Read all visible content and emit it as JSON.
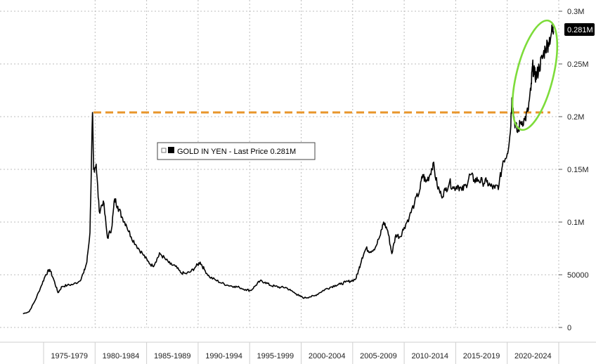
{
  "chart_data": {
    "type": "line",
    "x_tick_labels": [
      "1975-1979",
      "1980-1984",
      "1985-1989",
      "1990-1994",
      "1995-1999",
      "2000-2004",
      "2005-2009",
      "2010-2014",
      "2015-2019",
      "2020-2024"
    ],
    "y_tick_labels": [
      "0",
      "50000",
      "0.1M",
      "0.15M",
      "0.2M",
      "0.25M",
      "0.3M"
    ],
    "ylim": [
      0,
      300000
    ],
    "legend": {
      "label": "GOLD IN YEN - Last Price 0.281M",
      "placement": "middle-left"
    },
    "last_value_label": "0.281M",
    "reference_line": {
      "value": 204000,
      "color": "#e8962b",
      "style": "dashed"
    },
    "highlight_ellipse_color": "#7ddc3a",
    "series": [
      {
        "name": "GOLD IN YEN",
        "color": "#000000",
        "points": [
          [
            1973.0,
            13000
          ],
          [
            1973.6,
            15000
          ],
          [
            1974.2,
            26000
          ],
          [
            1974.8,
            40000
          ],
          [
            1975.2,
            50000
          ],
          [
            1975.6,
            55000
          ],
          [
            1976.0,
            45000
          ],
          [
            1976.4,
            33000
          ],
          [
            1976.8,
            39000
          ],
          [
            1977.3,
            40000
          ],
          [
            1977.9,
            41000
          ],
          [
            1978.5,
            44000
          ],
          [
            1978.9,
            52000
          ],
          [
            1979.2,
            62000
          ],
          [
            1979.5,
            90000
          ],
          [
            1979.75,
            204000
          ],
          [
            1979.85,
            150000
          ],
          [
            1980.1,
            155000
          ],
          [
            1980.4,
            110000
          ],
          [
            1980.8,
            120000
          ],
          [
            1981.2,
            85000
          ],
          [
            1981.6,
            94000
          ],
          [
            1981.9,
            122000
          ],
          [
            1982.2,
            115000
          ],
          [
            1982.6,
            105000
          ],
          [
            1983.0,
            98000
          ],
          [
            1983.5,
            86000
          ],
          [
            1984.0,
            78000
          ],
          [
            1984.6,
            70000
          ],
          [
            1985.1,
            63000
          ],
          [
            1985.6,
            58000
          ],
          [
            1986.0,
            65000
          ],
          [
            1986.3,
            70000
          ],
          [
            1986.8,
            65000
          ],
          [
            1987.3,
            60000
          ],
          [
            1987.8,
            58000
          ],
          [
            1988.3,
            52000
          ],
          [
            1988.8,
            51000
          ],
          [
            1989.3,
            53000
          ],
          [
            1989.8,
            58000
          ],
          [
            1990.2,
            62000
          ],
          [
            1990.6,
            55000
          ],
          [
            1991.1,
            48000
          ],
          [
            1991.7,
            45000
          ],
          [
            1992.3,
            42000
          ],
          [
            1992.9,
            40000
          ],
          [
            1993.5,
            39000
          ],
          [
            1994.0,
            38000
          ],
          [
            1994.6,
            36000
          ],
          [
            1995.1,
            35000
          ],
          [
            1995.6,
            40000
          ],
          [
            1996.0,
            44000
          ],
          [
            1996.5,
            43000
          ],
          [
            1997.0,
            40000
          ],
          [
            1997.5,
            39000
          ],
          [
            1998.0,
            38000
          ],
          [
            1998.5,
            38000
          ],
          [
            1999.0,
            35000
          ],
          [
            1999.5,
            32000
          ],
          [
            1999.8,
            30000
          ],
          [
            2000.3,
            28000
          ],
          [
            2000.8,
            29000
          ],
          [
            2001.3,
            30000
          ],
          [
            2001.8,
            33000
          ],
          [
            2002.3,
            36000
          ],
          [
            2002.8,
            38000
          ],
          [
            2003.3,
            40000
          ],
          [
            2003.8,
            41000
          ],
          [
            2004.3,
            43000
          ],
          [
            2004.8,
            44000
          ],
          [
            2005.3,
            46000
          ],
          [
            2005.6,
            55000
          ],
          [
            2005.9,
            66000
          ],
          [
            2006.3,
            75000
          ],
          [
            2006.7,
            72000
          ],
          [
            2007.2,
            76000
          ],
          [
            2007.7,
            88000
          ],
          [
            2008.0,
            100000
          ],
          [
            2008.4,
            92000
          ],
          [
            2008.8,
            70000
          ],
          [
            2009.2,
            88000
          ],
          [
            2009.6,
            86000
          ],
          [
            2010.0,
            95000
          ],
          [
            2010.5,
            105000
          ],
          [
            2011.0,
            118000
          ],
          [
            2011.5,
            130000
          ],
          [
            2011.8,
            145000
          ],
          [
            2012.1,
            138000
          ],
          [
            2012.5,
            145000
          ],
          [
            2012.8,
            156000
          ],
          [
            2013.2,
            135000
          ],
          [
            2013.6,
            125000
          ],
          [
            2014.0,
            130000
          ],
          [
            2014.4,
            138000
          ],
          [
            2014.8,
            132000
          ],
          [
            2015.2,
            135000
          ],
          [
            2015.6,
            130000
          ],
          [
            2016.0,
            135000
          ],
          [
            2016.4,
            145000
          ],
          [
            2016.8,
            140000
          ],
          [
            2017.2,
            140000
          ],
          [
            2017.6,
            138000
          ],
          [
            2018.0,
            138000
          ],
          [
            2018.4,
            134000
          ],
          [
            2018.8,
            132000
          ],
          [
            2019.2,
            135000
          ],
          [
            2019.6,
            158000
          ],
          [
            2020.0,
            165000
          ],
          [
            2020.3,
            185000
          ],
          [
            2020.45,
            218000
          ],
          [
            2020.7,
            196000
          ],
          [
            2021.0,
            185000
          ],
          [
            2021.3,
            195000
          ],
          [
            2021.7,
            197000
          ],
          [
            2022.0,
            205000
          ],
          [
            2022.3,
            225000
          ],
          [
            2022.45,
            248000
          ],
          [
            2022.65,
            240000
          ],
          [
            2022.85,
            238000
          ],
          [
            2023.1,
            247000
          ],
          [
            2023.4,
            255000
          ],
          [
            2023.7,
            265000
          ],
          [
            2024.0,
            270000
          ],
          [
            2024.3,
            280000
          ],
          [
            2024.5,
            281000
          ]
        ]
      }
    ]
  }
}
